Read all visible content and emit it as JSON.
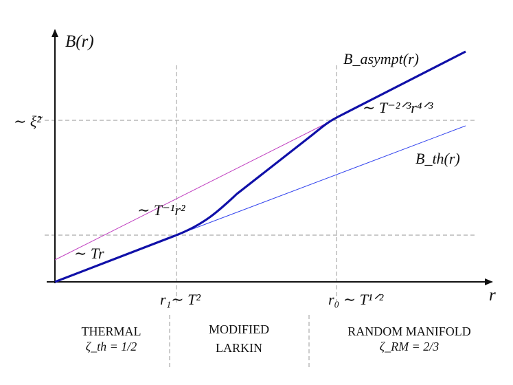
{
  "axes": {
    "y_label": "B(r)",
    "x_label": "r"
  },
  "y_marks": {
    "xi": "∼ ξ̃²"
  },
  "x_marks": {
    "r1": "r₁∼ T²",
    "r0": "r₀ ∼ T¹ᐟ²"
  },
  "curve_labels": {
    "asympt": "B_asympt(r)",
    "power43": "∼ T⁻²ᐟ³r⁴ᐟ³",
    "thermal_fit": "B_th(r)",
    "larkin": "∼ T⁻¹r²",
    "linear": "∼ Tr"
  },
  "regimes": [
    {
      "name": "THERMAL",
      "exponent": "ζ_th = 1/2"
    },
    {
      "name": "MODIFIED",
      "exponent": "LARKIN"
    },
    {
      "name": "RANDOM MANIFOLD",
      "exponent": "ζ_RM = 2/3"
    }
  ]
}
